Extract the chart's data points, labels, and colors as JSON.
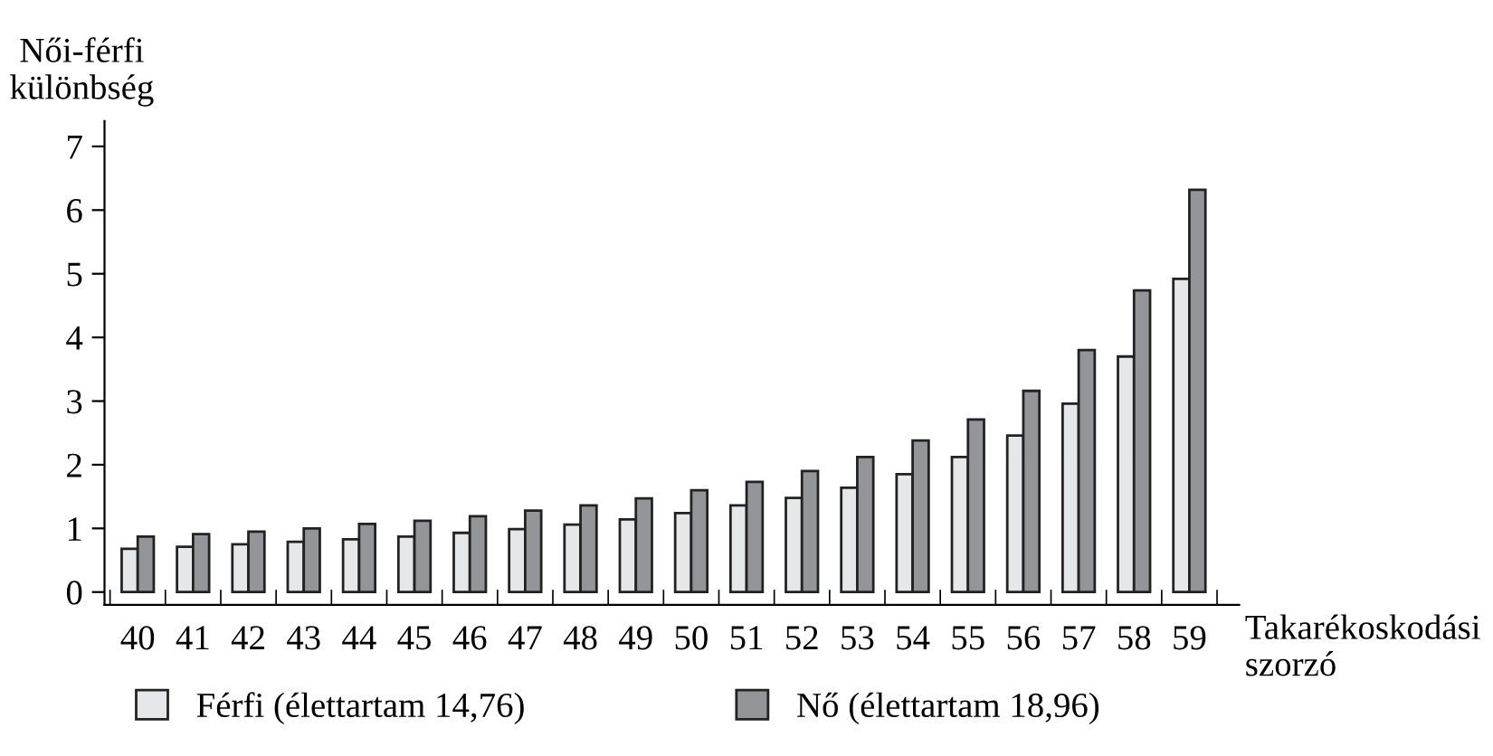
{
  "chart_data": {
    "type": "bar",
    "ylabel": "Női-férfi\nkülönbség",
    "xlabel": "Takarékoskodási\nszorzó",
    "categories": [
      "40",
      "41",
      "42",
      "43",
      "44",
      "45",
      "46",
      "47",
      "48",
      "49",
      "50",
      "51",
      "52",
      "53",
      "54",
      "55",
      "56",
      "57",
      "58",
      "59"
    ],
    "series": [
      {
        "name": "Férfi (élettartam 14,76)",
        "color": "#e6e7e8",
        "values": [
          0.68,
          0.71,
          0.75,
          0.79,
          0.83,
          0.87,
          0.93,
          0.99,
          1.06,
          1.14,
          1.24,
          1.36,
          1.48,
          1.64,
          1.85,
          2.12,
          2.46,
          2.96,
          3.7,
          4.92
        ]
      },
      {
        "name": "Nő (élettartam 18,96)",
        "color": "#939598",
        "values": [
          0.87,
          0.91,
          0.95,
          1.0,
          1.07,
          1.12,
          1.19,
          1.28,
          1.36,
          1.47,
          1.6,
          1.73,
          1.9,
          2.12,
          2.38,
          2.71,
          3.16,
          3.8,
          4.74,
          6.32
        ]
      }
    ],
    "ylim": [
      -0.2,
      7.4
    ],
    "yticks": [
      0,
      1,
      2,
      3,
      4,
      5,
      6,
      7
    ],
    "grid": false,
    "legend": "bottom"
  }
}
